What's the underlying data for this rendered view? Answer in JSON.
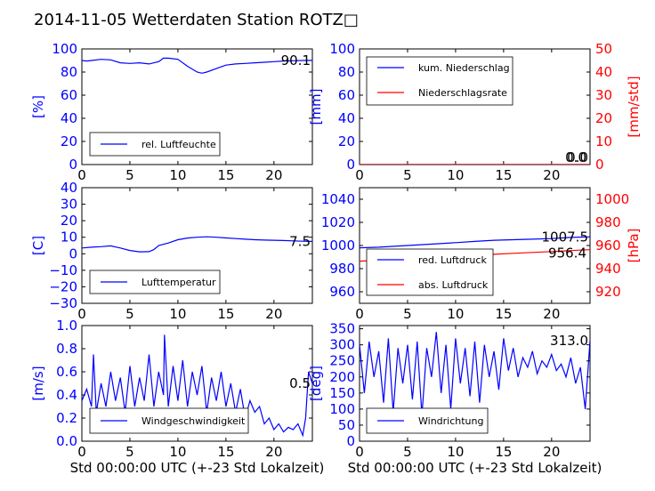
{
  "title": "2014-11-05 Wetterdaten Station ROTZ□",
  "colors": {
    "primary": "#0000ff",
    "secondary": "#ff0000",
    "text": "#000000"
  },
  "chart_data": [
    {
      "type": "line",
      "panel": "humidity",
      "ylabel": "[%]",
      "xlabel": "",
      "xlim": [
        0,
        24
      ],
      "ylim": [
        0,
        100
      ],
      "xticks": [
        0,
        5,
        10,
        15,
        20
      ],
      "yticks": [
        0,
        20,
        40,
        60,
        80,
        100
      ],
      "last_value_label": "90.1",
      "legend_position": "lower-left",
      "series": [
        {
          "name": "rel. Luftfeuchte",
          "color": "#0000ff",
          "x": [
            0,
            0.5,
            1,
            2,
            3,
            4,
            5,
            6,
            7,
            8,
            8.5,
            9,
            10,
            11,
            12,
            12.5,
            13,
            14,
            15,
            16,
            17,
            18,
            19,
            20,
            21,
            22,
            23,
            24
          ],
          "y": [
            90,
            89.5,
            90,
            91,
            90.5,
            88,
            87.5,
            88,
            87,
            89,
            92,
            92,
            91,
            85,
            80,
            79,
            80,
            83,
            86,
            87,
            87.5,
            88,
            88.5,
            89,
            89.5,
            89.8,
            90,
            90.1
          ]
        }
      ]
    },
    {
      "type": "line",
      "panel": "precipitation",
      "ylabel": "[mm]",
      "ylabel_right": "[mm/std]",
      "xlabel": "",
      "xlim": [
        0,
        24
      ],
      "ylim": [
        0,
        100
      ],
      "ylim_right": [
        0,
        50
      ],
      "xticks": [
        0,
        5,
        10,
        15,
        20
      ],
      "yticks": [
        0,
        20,
        40,
        60,
        80,
        100
      ],
      "yticks_right": [
        0,
        10,
        20,
        30,
        40,
        50
      ],
      "last_value_label": "0.0",
      "last_value_label_right": "0.0",
      "legend_position": "upper-left",
      "series": [
        {
          "name": "kum. Niederschlag",
          "color": "#0000ff",
          "axis": "left",
          "x": [
            0,
            24
          ],
          "y": [
            0,
            0
          ]
        },
        {
          "name": "Niederschlagsrate",
          "color": "#ff0000",
          "axis": "right",
          "x": [
            0,
            24
          ],
          "y": [
            0,
            0
          ]
        }
      ]
    },
    {
      "type": "line",
      "panel": "temperature",
      "ylabel": "[C]",
      "xlabel": "",
      "xlim": [
        0,
        24
      ],
      "ylim": [
        -30,
        40
      ],
      "xticks": [
        0,
        5,
        10,
        15,
        20
      ],
      "yticks": [
        -30,
        -20,
        -10,
        0,
        10,
        20,
        30,
        40
      ],
      "last_value_label": "7.5",
      "legend_position": "lower-left",
      "series": [
        {
          "name": "Lufttemperatur",
          "color": "#0000ff",
          "x": [
            0,
            1,
            2,
            3,
            4,
            5,
            6,
            7,
            7.5,
            8,
            9,
            10,
            11,
            12,
            13,
            14,
            15,
            16,
            17,
            18,
            19,
            20,
            21,
            22,
            23,
            24
          ],
          "y": [
            3.5,
            4,
            4.3,
            4.8,
            3.5,
            2,
            1.2,
            1.3,
            2.5,
            5,
            6.5,
            8.5,
            9.5,
            10,
            10.3,
            10,
            9.6,
            9.2,
            8.8,
            8.5,
            8.3,
            8.2,
            8,
            7.8,
            7.6,
            7.5
          ]
        }
      ]
    },
    {
      "type": "line",
      "panel": "pressure",
      "ylabel": "",
      "ylabel_right": "[hPa]",
      "xlabel": "",
      "xlim": [
        0,
        24
      ],
      "ylim": [
        950,
        1050
      ],
      "ylim_right": [
        910,
        1010
      ],
      "xticks": [
        0,
        5,
        10,
        15,
        20
      ],
      "yticks": [
        960,
        980,
        1000,
        1020,
        1040
      ],
      "yticks_right": [
        920,
        940,
        960,
        980,
        1000
      ],
      "last_value_label": "1007.5",
      "last_value_label_right": "956.4",
      "legend_position": "lower-left",
      "series": [
        {
          "name": "red. Luftdruck",
          "color": "#0000ff",
          "axis": "left",
          "x": [
            0,
            2,
            4,
            6,
            8,
            10,
            12,
            14,
            16,
            18,
            20,
            22,
            24
          ],
          "y": [
            998,
            998.5,
            999.5,
            1000.5,
            1001.5,
            1002.5,
            1003.5,
            1004.5,
            1005,
            1005.5,
            1006,
            1007,
            1007.5
          ]
        },
        {
          "name": "abs. Luftdruck",
          "color": "#ff0000",
          "axis": "right",
          "x": [
            0,
            2,
            4,
            6,
            8,
            10,
            12,
            14,
            16,
            18,
            20,
            22,
            24
          ],
          "y": [
            946.5,
            947.2,
            948,
            949,
            950,
            950.8,
            951.6,
            952.4,
            953.2,
            954,
            954.8,
            955.6,
            956.4
          ]
        }
      ]
    },
    {
      "type": "line",
      "panel": "wind_speed",
      "ylabel": "[m/s]",
      "xlabel": "Std 00:00:00 UTC (+-23 Std Lokalzeit)",
      "xlim": [
        0,
        24
      ],
      "ylim": [
        0,
        1
      ],
      "xticks": [
        0,
        5,
        10,
        15,
        20
      ],
      "yticks": [
        0,
        0.2,
        0.4,
        0.6,
        0.8,
        1.0
      ],
      "ytick_labels": [
        "0.0",
        "0.2",
        "0.4",
        "0.6",
        "0.8",
        "1.0"
      ],
      "last_value_label": "0.5",
      "legend_position": "lower-left",
      "series": [
        {
          "name": "Windgeschwindigkeit",
          "color": "#0000ff",
          "x": [
            0,
            0.5,
            1,
            1.2,
            1.5,
            2,
            2.5,
            3,
            3.5,
            4,
            4.5,
            5,
            5.5,
            6,
            6.5,
            7,
            7.5,
            8,
            8.5,
            8.6,
            9,
            9.5,
            10,
            10.5,
            11,
            11.5,
            12,
            12.5,
            13,
            13.5,
            14,
            14.5,
            15,
            15.5,
            16,
            16.5,
            17,
            17.5,
            18,
            18.5,
            19,
            19.5,
            20,
            20.5,
            21,
            21.5,
            22,
            22.5,
            23,
            23.3,
            23.6,
            24
          ],
          "y": [
            0.35,
            0.45,
            0.3,
            0.75,
            0.25,
            0.5,
            0.3,
            0.6,
            0.35,
            0.55,
            0.25,
            0.65,
            0.3,
            0.55,
            0.35,
            0.75,
            0.3,
            0.6,
            0.4,
            0.92,
            0.3,
            0.65,
            0.35,
            0.7,
            0.3,
            0.6,
            0.4,
            0.65,
            0.25,
            0.55,
            0.35,
            0.6,
            0.3,
            0.5,
            0.25,
            0.45,
            0.2,
            0.35,
            0.25,
            0.3,
            0.15,
            0.2,
            0.1,
            0.15,
            0.08,
            0.12,
            0.1,
            0.15,
            0.05,
            0.2,
            0.6,
            0.5
          ]
        }
      ]
    },
    {
      "type": "line",
      "panel": "wind_direction",
      "ylabel": "[deg]",
      "xlabel": "Std 00:00:00 UTC (+-23 Std Lokalzeit)",
      "xlim": [
        0,
        24
      ],
      "ylim": [
        0,
        360
      ],
      "xticks": [
        0,
        5,
        10,
        15,
        20
      ],
      "yticks": [
        0,
        50,
        100,
        150,
        200,
        250,
        300,
        350
      ],
      "last_value_label": "313.0",
      "legend_position": "lower-left",
      "series": [
        {
          "name": "Windrichtung",
          "color": "#0000ff",
          "x": [
            0,
            0.5,
            1,
            1.5,
            2,
            2.5,
            3,
            3.5,
            4,
            4.5,
            5,
            5.5,
            6,
            6.5,
            7,
            7.5,
            8,
            8.5,
            9,
            9.5,
            10,
            10.5,
            11,
            11.5,
            12,
            12.5,
            13,
            13.5,
            14,
            14.5,
            15,
            15.5,
            16,
            16.5,
            17,
            17.5,
            18,
            18.5,
            19,
            19.5,
            20,
            20.5,
            21,
            21.5,
            22,
            22.5,
            23,
            23.5,
            24
          ],
          "y": [
            300,
            150,
            310,
            200,
            280,
            120,
            320,
            90,
            290,
            180,
            300,
            130,
            310,
            80,
            290,
            200,
            340,
            150,
            300,
            100,
            320,
            180,
            290,
            140,
            310,
            120,
            300,
            200,
            280,
            160,
            320,
            220,
            290,
            200,
            260,
            230,
            280,
            210,
            250,
            230,
            270,
            220,
            240,
            200,
            260,
            180,
            230,
            100,
            313
          ]
        }
      ]
    }
  ]
}
